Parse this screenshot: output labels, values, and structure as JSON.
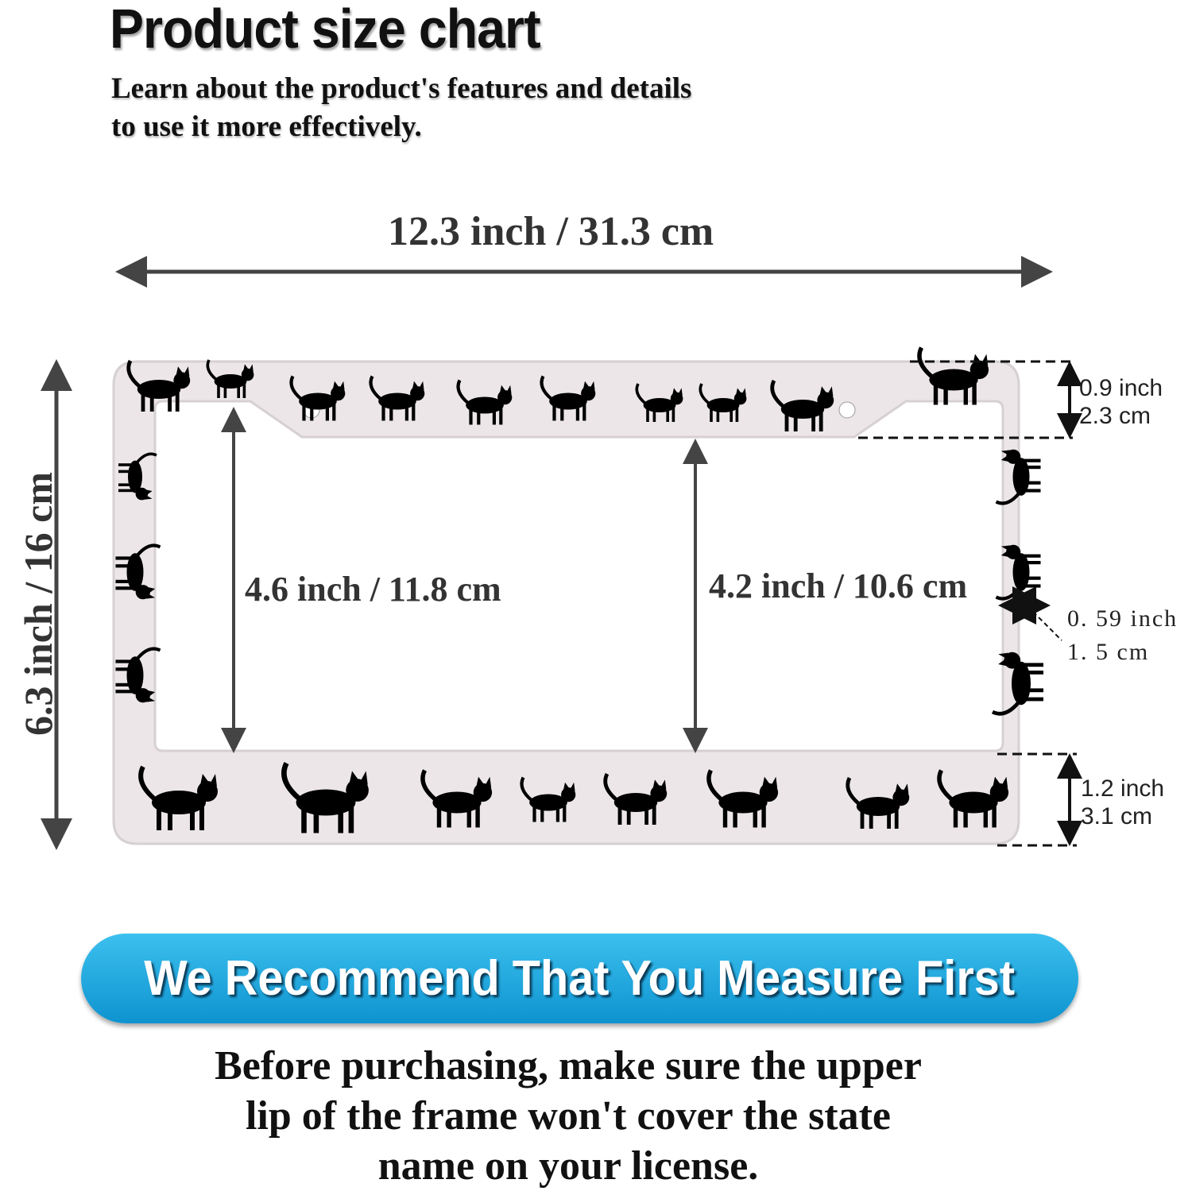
{
  "header": {
    "title": "Product size chart",
    "subtitle_lines": [
      "Learn about the product's features and details",
      "to use it more effectively."
    ]
  },
  "dimensions": {
    "width": "12.3 inch / 31.3 cm",
    "height": "6.3 inch / 16 cm",
    "inner_left_height": "4.6 inch / 11.8 cm",
    "inner_right_height": "4.2 inch / 10.6 cm",
    "top_border": {
      "inch": "0.9 inch",
      "cm": "2.3 cm"
    },
    "side_border": {
      "inch": "0. 59 inch",
      "cm": "1. 5 cm"
    },
    "bottom_border": {
      "inch": "1.2 inch",
      "cm": "3.1 cm"
    }
  },
  "banner": {
    "text": "We Recommend That You Measure First",
    "color": "#1ea6dd"
  },
  "note": {
    "lines": [
      "Before purchasing, make sure the upper",
      "lip of the frame won't cover the state",
      "name on your license."
    ]
  },
  "colors": {
    "frame": "#ece6e8",
    "cats": "#000000",
    "arrows": "#444444"
  }
}
